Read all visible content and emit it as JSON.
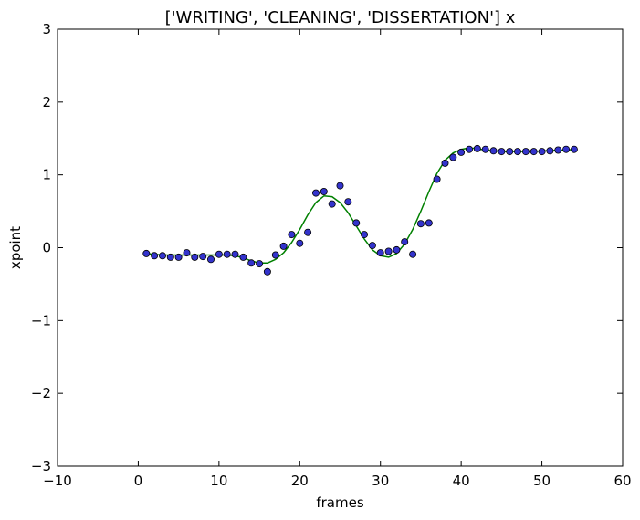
{
  "chart_data": {
    "type": "scatter",
    "title": "['WRITING', 'CLEANING', 'DISSERTATION'] x",
    "xlabel": "frames",
    "ylabel": "xpoint",
    "xlim": [
      -10,
      60
    ],
    "ylim": [
      -3,
      3
    ],
    "xticks": [
      -10,
      0,
      10,
      20,
      30,
      40,
      50,
      60
    ],
    "xtick_labels": [
      "−10",
      "0",
      "10",
      "20",
      "30",
      "40",
      "50",
      "60"
    ],
    "yticks": [
      -3,
      -2,
      -1,
      0,
      1,
      2,
      3
    ],
    "ytick_labels": [
      "−3",
      "−2",
      "−1",
      "0",
      "1",
      "2",
      "3"
    ],
    "grid": false,
    "colors": {
      "points_fill": "#3333cc",
      "points_edge": "#000000",
      "line": "#008000",
      "axes": "#000000"
    },
    "series": [
      {
        "kind": "scatter",
        "x": [
          1,
          2,
          3,
          4,
          5,
          6,
          7,
          8,
          9,
          10,
          11,
          12,
          13,
          14,
          15,
          16,
          17,
          18,
          19,
          20,
          21,
          22,
          23,
          24,
          25,
          26,
          27,
          28,
          29,
          30,
          31,
          32,
          33,
          34,
          35,
          36,
          37,
          38,
          39,
          40,
          41,
          42,
          43,
          44,
          45,
          46,
          47,
          48,
          49,
          50,
          51,
          52,
          53,
          54
        ],
        "y": [
          -0.08,
          -0.11,
          -0.11,
          -0.13,
          -0.13,
          -0.07,
          -0.13,
          -0.12,
          -0.16,
          -0.09,
          -0.09,
          -0.09,
          -0.13,
          -0.21,
          -0.22,
          -0.33,
          -0.1,
          0.02,
          0.18,
          0.06,
          0.21,
          0.75,
          0.77,
          0.6,
          0.85,
          0.63,
          0.34,
          0.18,
          0.03,
          -0.07,
          -0.05,
          -0.03,
          0.08,
          -0.09,
          0.33,
          0.34,
          0.94,
          1.16,
          1.24,
          1.31,
          1.35,
          1.36,
          1.35,
          1.33,
          1.32,
          1.32,
          1.32,
          1.32,
          1.32,
          1.32,
          1.33,
          1.34,
          1.35,
          1.35
        ]
      },
      {
        "kind": "line",
        "x": [
          1,
          2,
          3,
          4,
          5,
          6,
          7,
          8,
          9,
          10,
          11,
          12,
          13,
          14,
          15,
          16,
          17,
          18,
          19,
          20,
          21,
          22,
          23,
          24,
          25,
          26,
          27,
          28,
          29,
          30,
          31,
          32,
          33,
          34,
          35,
          36,
          37,
          38,
          39,
          40,
          41,
          42,
          43,
          44,
          45,
          46,
          47,
          48,
          49,
          50,
          51,
          52,
          53,
          54
        ],
        "y": [
          -0.08,
          -0.09,
          -0.1,
          -0.1,
          -0.1,
          -0.1,
          -0.1,
          -0.1,
          -0.1,
          -0.1,
          -0.1,
          -0.11,
          -0.14,
          -0.18,
          -0.21,
          -0.21,
          -0.16,
          -0.07,
          0.07,
          0.25,
          0.45,
          0.62,
          0.71,
          0.7,
          0.62,
          0.48,
          0.3,
          0.12,
          -0.03,
          -0.11,
          -0.13,
          -0.08,
          0.05,
          0.25,
          0.5,
          0.77,
          1.02,
          1.2,
          1.3,
          1.35,
          1.37,
          1.36,
          1.34,
          1.33,
          1.32,
          1.32,
          1.32,
          1.32,
          1.32,
          1.33,
          1.33,
          1.34,
          1.34,
          1.35
        ]
      }
    ]
  }
}
